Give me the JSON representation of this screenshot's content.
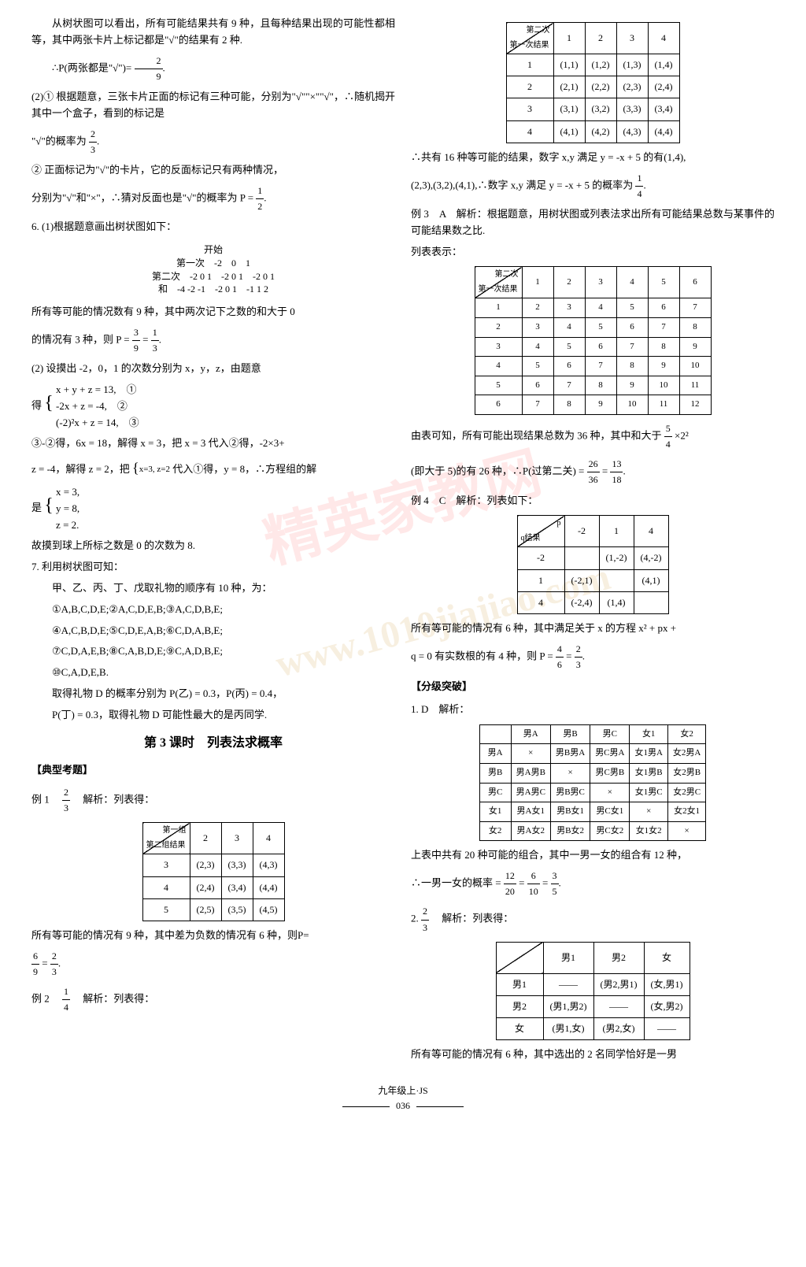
{
  "watermark1": "精英家教网",
  "watermark2": "www.1010jiajiao.com",
  "left": {
    "p1": "从树状图可以看出，所有可能结果共有 9 种，且每种结果出现的可能性都相等，其中两张卡片上标记都是\"√\"的结果有 2 种.",
    "p2a": "∴P(两张都是\"√\")=",
    "p2_num": "2",
    "p2_den": "9",
    "p3": "(2)① 根据题意，三张卡片正面的标记有三种可能，分别为\"√\"\"×\"\"√\"，∴随机揭开其中一个盒子，看到的标记是",
    "p4a": "\"√\"的概率为",
    "p4_num": "2",
    "p4_den": "3",
    "p5": "② 正面标记为\"√\"的卡片，它的反面标记只有两种情况，",
    "p6a": "分别为\"√\"和\"×\"，∴猜对反面也是\"√\"的概率为 P =",
    "p6_num": "1",
    "p6_den": "2",
    "p7": "6. (1)根据题意画出树状图如下：",
    "tree_start": "开始",
    "tree_l1": "第一次",
    "tree_l1_vals": [
      "-2",
      "0",
      "1"
    ],
    "tree_l2": "第二次",
    "tree_l2_vals": [
      "-2 0 1",
      "-2 0 1",
      "-2 0 1"
    ],
    "tree_l3": "和",
    "tree_l3_vals": [
      "-4 -2 -1",
      "-2 0 1",
      "-1 1 2"
    ],
    "p8": "所有等可能的情况数有 9 种，其中两次记下之数的和大于 0",
    "p9a": "的情况有 3 种，则 P =",
    "p9_f1n": "3",
    "p9_f1d": "9",
    "p9_eq": " = ",
    "p9_f2n": "1",
    "p9_f2d": "3",
    "p10": "(2) 设摸出 -2，0，1 的次数分别为 x，y，z，由题意",
    "p11": "得",
    "eq1": "x + y + z = 13,　①",
    "eq2": "-2x + z = -4,　②",
    "eq3": "(-2)²x + z = 14,　③",
    "p12": "③-②得，6x = 18，解得 x = 3，把 x = 3 代入②得，-2×3+",
    "p13a": "z = -4，解得 z = 2，把",
    "p13b": "代入①得，y = 8，∴方程组的解",
    "eq_xz": "x=3,\nz=2",
    "p14": "是",
    "sol1": "x = 3,",
    "sol2": "y = 8,",
    "sol3": "z = 2.",
    "p15": "故摸到球上所标之数是 0 的次数为 8.",
    "p16": "7. 利用树状图可知：",
    "p17": "甲、乙、丙、丁、戊取礼物的顺序有 10 种，为：",
    "seq1": "①A,B,C,D,E;②A,C,D,E,B;③A,C,D,B,E;",
    "seq2": "④A,C,B,D,E;⑤C,D,E,A,B;⑥C,D,A,B,E;",
    "seq3": "⑦C,D,A,E,B;⑧C,A,B,D,E;⑨C,A,D,B,E;",
    "seq4": "⑩C,A,D,E,B.",
    "p18": "取得礼物 D 的概率分别为 P(乙) = 0.3，P(丙) = 0.4，",
    "p19": "P(丁) = 0.3，取得礼物 D 可能性最大的是丙同学.",
    "heading": "第 3 课时　列表法求概率",
    "section1": "【典型考题】",
    "ex1a": "例 1　",
    "ex1_n": "2",
    "ex1_d": "3",
    "ex1b": "　解析：列表得：",
    "t1_diag_top": "第一组",
    "t1_diag_bot": "第二组结果",
    "t1_h": [
      "2",
      "3",
      "4"
    ],
    "t1_r1": [
      "3",
      "(2,3)",
      "(3,3)",
      "(4,3)"
    ],
    "t1_r2": [
      "4",
      "(2,4)",
      "(3,4)",
      "(4,4)"
    ],
    "t1_r3": [
      "5",
      "(2,5)",
      "(3,5)",
      "(4,5)"
    ],
    "p20a": "所有等可能的情况有 9 种，其中差为负数的情况有 6 种，则P=",
    "p21_f1n": "6",
    "p21_f1d": "9",
    "p21_eq": " = ",
    "p21_f2n": "2",
    "p21_f2d": "3",
    "ex2a": "例 2　",
    "ex2_n": "1",
    "ex2_d": "4",
    "ex2b": "　解析：列表得："
  },
  "right": {
    "t2_diag_top": "第二次",
    "t2_diag_bot": "第一次结果",
    "t2_h": [
      "1",
      "2",
      "3",
      "4"
    ],
    "t2_r1": [
      "1",
      "(1,1)",
      "(1,2)",
      "(1,3)",
      "(1,4)"
    ],
    "t2_r2": [
      "2",
      "(2,1)",
      "(2,2)",
      "(2,3)",
      "(2,4)"
    ],
    "t2_r3": [
      "3",
      "(3,1)",
      "(3,2)",
      "(3,3)",
      "(3,4)"
    ],
    "t2_r4": [
      "4",
      "(4,1)",
      "(4,2)",
      "(4,3)",
      "(4,4)"
    ],
    "p1": "∴共有 16 种等可能的结果，数字 x,y 满足 y = -x + 5 的有(1,4),",
    "p2a": "(2,3),(3,2),(4,1),∴数字 x,y 满足 y = -x + 5 的概率为",
    "p2_n": "1",
    "p2_d": "4",
    "p3": "例 3　A　解析：根据题意，用树状图或列表法求出所有可能结果总数与某事件的可能结果数之比.",
    "p4": "列表表示：",
    "t3_diag_top": "第二次",
    "t3_diag_bot": "第一次结果",
    "t3_h": [
      "1",
      "2",
      "3",
      "4",
      "5",
      "6"
    ],
    "t3_r1": [
      "1",
      "2",
      "3",
      "4",
      "5",
      "6",
      "7"
    ],
    "t3_r2": [
      "2",
      "3",
      "4",
      "5",
      "6",
      "7",
      "8"
    ],
    "t3_r3": [
      "3",
      "4",
      "5",
      "6",
      "7",
      "8",
      "9"
    ],
    "t3_r4": [
      "4",
      "5",
      "6",
      "7",
      "8",
      "9",
      "10"
    ],
    "t3_r5": [
      "5",
      "6",
      "7",
      "8",
      "9",
      "10",
      "11"
    ],
    "t3_r6": [
      "6",
      "7",
      "8",
      "9",
      "10",
      "11",
      "12"
    ],
    "p5a": "由表可知，所有可能出现结果总数为 36 种，其中和大于",
    "p5_n": "5",
    "p5_d": "4",
    "p5b": "×2²",
    "p6a": "(即大于 5)的有 26 种，∴P(过第二关) =",
    "p6_f1n": "26",
    "p6_f1d": "36",
    "p6_eq": " = ",
    "p6_f2n": "13",
    "p6_f2d": "18",
    "p7": "例 4　C　解析：列表如下：",
    "t4_diag_top": "p",
    "t4_diag_bot": "q结果",
    "t4_h": [
      "-2",
      "1",
      "4"
    ],
    "t4_r1": [
      "-2",
      "",
      "(1,-2)",
      "(4,-2)"
    ],
    "t4_r2": [
      "1",
      "(-2,1)",
      "",
      "(4,1)"
    ],
    "t4_r3": [
      "4",
      "(-2,4)",
      "(1,4)",
      ""
    ],
    "p8": "所有等可能的情况有 6 种，其中满足关于 x 的方程 x² + px +",
    "p9a": "q = 0 有实数根的有 4 种，则 P =",
    "p9_f1n": "4",
    "p9_f1d": "6",
    "p9_eq": " = ",
    "p9_f2n": "2",
    "p9_f2d": "3",
    "section2": "【分级突破】",
    "p10": "1. D　解析：",
    "t5_h": [
      "",
      "男A",
      "男B",
      "男C",
      "女1",
      "女2"
    ],
    "t5_r1": [
      "男A",
      "×",
      "男B男A",
      "男C男A",
      "女1男A",
      "女2男A"
    ],
    "t5_r2": [
      "男B",
      "男A男B",
      "×",
      "男C男B",
      "女1男B",
      "女2男B"
    ],
    "t5_r3": [
      "男C",
      "男A男C",
      "男B男C",
      "×",
      "女1男C",
      "女2男C"
    ],
    "t5_r4": [
      "女1",
      "男A女1",
      "男B女1",
      "男C女1",
      "×",
      "女2女1"
    ],
    "t5_r5": [
      "女2",
      "男A女2",
      "男B女2",
      "男C女2",
      "女1女2",
      "×"
    ],
    "p11": "上表中共有 20 种可能的组合，其中一男一女的组合有 12 种，",
    "p12a": "∴一男一女的概率 =",
    "p12_f1n": "12",
    "p12_f1d": "20",
    "p12_e1": " = ",
    "p12_f2n": "6",
    "p12_f2d": "10",
    "p12_e2": " = ",
    "p12_f3n": "3",
    "p12_f3d": "5",
    "p13a": "2. ",
    "p13_n": "2",
    "p13_d": "3",
    "p13b": "　解析：列表得：",
    "t6_h": [
      "",
      "男1",
      "男2",
      "女"
    ],
    "t6_r1": [
      "男1",
      "——",
      "(男2,男1)",
      "(女,男1)"
    ],
    "t6_r2": [
      "男2",
      "(男1,男2)",
      "——",
      "(女,男2)"
    ],
    "t6_r3": [
      "女",
      "(男1,女)",
      "(男2,女)",
      "——"
    ],
    "p14": "所有等可能的情况有 6 种，其中选出的 2 名同学恰好是一男"
  },
  "footer": {
    "grade": "九年级上·JS",
    "page": "036"
  }
}
